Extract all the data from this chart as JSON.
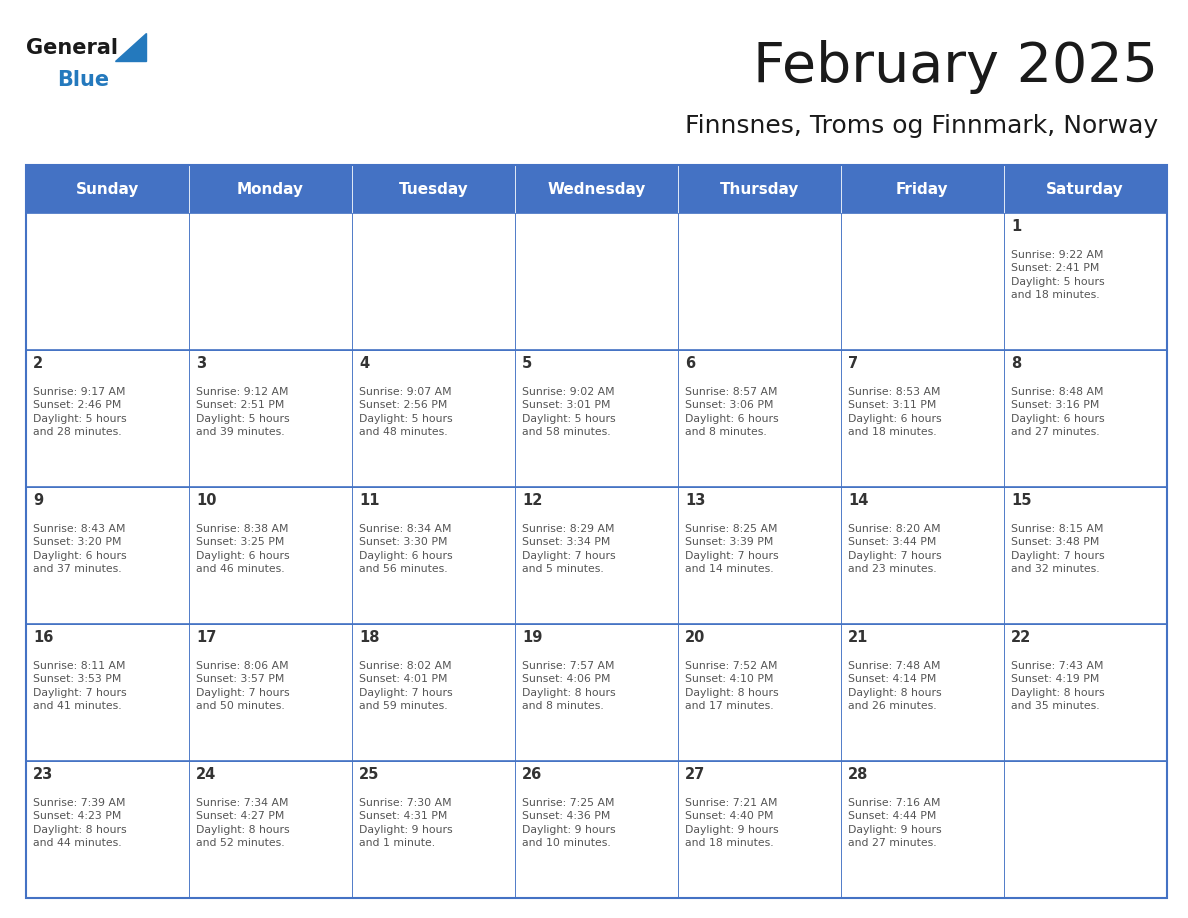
{
  "title": "February 2025",
  "subtitle": "Finnsnes, Troms og Finnmark, Norway",
  "days_of_week": [
    "Sunday",
    "Monday",
    "Tuesday",
    "Wednesday",
    "Thursday",
    "Friday",
    "Saturday"
  ],
  "header_bg": "#4472C4",
  "header_text": "#FFFFFF",
  "cell_border": "#4472C4",
  "text_color": "#555555",
  "day_num_color": "#333333",
  "logo_general_color": "#1a1a1a",
  "logo_blue_color": "#2479BD",
  "calendar_data": [
    [
      {
        "day": null,
        "info": null
      },
      {
        "day": null,
        "info": null
      },
      {
        "day": null,
        "info": null
      },
      {
        "day": null,
        "info": null
      },
      {
        "day": null,
        "info": null
      },
      {
        "day": null,
        "info": null
      },
      {
        "day": 1,
        "info": "Sunrise: 9:22 AM\nSunset: 2:41 PM\nDaylight: 5 hours\nand 18 minutes."
      }
    ],
    [
      {
        "day": 2,
        "info": "Sunrise: 9:17 AM\nSunset: 2:46 PM\nDaylight: 5 hours\nand 28 minutes."
      },
      {
        "day": 3,
        "info": "Sunrise: 9:12 AM\nSunset: 2:51 PM\nDaylight: 5 hours\nand 39 minutes."
      },
      {
        "day": 4,
        "info": "Sunrise: 9:07 AM\nSunset: 2:56 PM\nDaylight: 5 hours\nand 48 minutes."
      },
      {
        "day": 5,
        "info": "Sunrise: 9:02 AM\nSunset: 3:01 PM\nDaylight: 5 hours\nand 58 minutes."
      },
      {
        "day": 6,
        "info": "Sunrise: 8:57 AM\nSunset: 3:06 PM\nDaylight: 6 hours\nand 8 minutes."
      },
      {
        "day": 7,
        "info": "Sunrise: 8:53 AM\nSunset: 3:11 PM\nDaylight: 6 hours\nand 18 minutes."
      },
      {
        "day": 8,
        "info": "Sunrise: 8:48 AM\nSunset: 3:16 PM\nDaylight: 6 hours\nand 27 minutes."
      }
    ],
    [
      {
        "day": 9,
        "info": "Sunrise: 8:43 AM\nSunset: 3:20 PM\nDaylight: 6 hours\nand 37 minutes."
      },
      {
        "day": 10,
        "info": "Sunrise: 8:38 AM\nSunset: 3:25 PM\nDaylight: 6 hours\nand 46 minutes."
      },
      {
        "day": 11,
        "info": "Sunrise: 8:34 AM\nSunset: 3:30 PM\nDaylight: 6 hours\nand 56 minutes."
      },
      {
        "day": 12,
        "info": "Sunrise: 8:29 AM\nSunset: 3:34 PM\nDaylight: 7 hours\nand 5 minutes."
      },
      {
        "day": 13,
        "info": "Sunrise: 8:25 AM\nSunset: 3:39 PM\nDaylight: 7 hours\nand 14 minutes."
      },
      {
        "day": 14,
        "info": "Sunrise: 8:20 AM\nSunset: 3:44 PM\nDaylight: 7 hours\nand 23 minutes."
      },
      {
        "day": 15,
        "info": "Sunrise: 8:15 AM\nSunset: 3:48 PM\nDaylight: 7 hours\nand 32 minutes."
      }
    ],
    [
      {
        "day": 16,
        "info": "Sunrise: 8:11 AM\nSunset: 3:53 PM\nDaylight: 7 hours\nand 41 minutes."
      },
      {
        "day": 17,
        "info": "Sunrise: 8:06 AM\nSunset: 3:57 PM\nDaylight: 7 hours\nand 50 minutes."
      },
      {
        "day": 18,
        "info": "Sunrise: 8:02 AM\nSunset: 4:01 PM\nDaylight: 7 hours\nand 59 minutes."
      },
      {
        "day": 19,
        "info": "Sunrise: 7:57 AM\nSunset: 4:06 PM\nDaylight: 8 hours\nand 8 minutes."
      },
      {
        "day": 20,
        "info": "Sunrise: 7:52 AM\nSunset: 4:10 PM\nDaylight: 8 hours\nand 17 minutes."
      },
      {
        "day": 21,
        "info": "Sunrise: 7:48 AM\nSunset: 4:14 PM\nDaylight: 8 hours\nand 26 minutes."
      },
      {
        "day": 22,
        "info": "Sunrise: 7:43 AM\nSunset: 4:19 PM\nDaylight: 8 hours\nand 35 minutes."
      }
    ],
    [
      {
        "day": 23,
        "info": "Sunrise: 7:39 AM\nSunset: 4:23 PM\nDaylight: 8 hours\nand 44 minutes."
      },
      {
        "day": 24,
        "info": "Sunrise: 7:34 AM\nSunset: 4:27 PM\nDaylight: 8 hours\nand 52 minutes."
      },
      {
        "day": 25,
        "info": "Sunrise: 7:30 AM\nSunset: 4:31 PM\nDaylight: 9 hours\nand 1 minute."
      },
      {
        "day": 26,
        "info": "Sunrise: 7:25 AM\nSunset: 4:36 PM\nDaylight: 9 hours\nand 10 minutes."
      },
      {
        "day": 27,
        "info": "Sunrise: 7:21 AM\nSunset: 4:40 PM\nDaylight: 9 hours\nand 18 minutes."
      },
      {
        "day": 28,
        "info": "Sunrise: 7:16 AM\nSunset: 4:44 PM\nDaylight: 9 hours\nand 27 minutes."
      },
      {
        "day": null,
        "info": null
      }
    ]
  ]
}
